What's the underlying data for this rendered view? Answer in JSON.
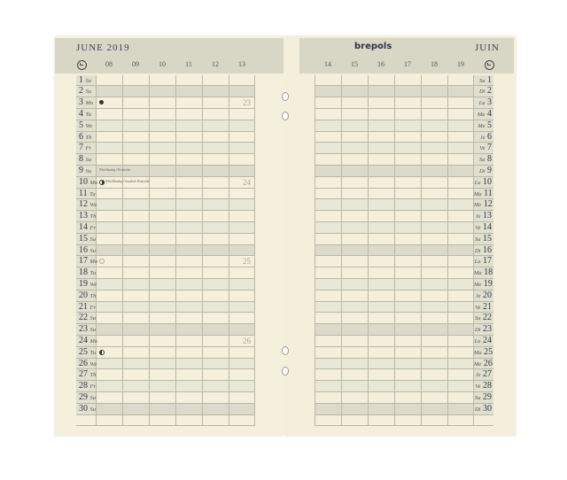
{
  "left_page": {
    "title": "JUNE 2019",
    "clock_icon": "clock-icon",
    "hours": [
      "08",
      "09",
      "10",
      "11",
      "12",
      "13"
    ]
  },
  "right_page": {
    "brand": "brepols",
    "title": "JUIN",
    "clock_icon": "clock-icon",
    "hours": [
      "14",
      "15",
      "16",
      "17",
      "18",
      "19"
    ]
  },
  "days": [
    {
      "n": "1",
      "en": "Sa",
      "fr": "Sa",
      "type": "sat"
    },
    {
      "n": "2",
      "en": "Su",
      "fr": "Di",
      "type": "sun"
    },
    {
      "n": "3",
      "en": "Mo",
      "fr": "Lu",
      "week": "23",
      "moon": "new"
    },
    {
      "n": "4",
      "en": "Tu",
      "fr": "Ma"
    },
    {
      "n": "5",
      "en": "We",
      "fr": "Me",
      "type": "wed"
    },
    {
      "n": "6",
      "en": "Th",
      "fr": "Je"
    },
    {
      "n": "7",
      "en": "Fr",
      "fr": "Ve",
      "type": "wed"
    },
    {
      "n": "8",
      "en": "Sa",
      "fr": "Sa"
    },
    {
      "n": "9",
      "en": "Su",
      "fr": "Di",
      "type": "sun",
      "note": "Whit Sunday / Pentecôte"
    },
    {
      "n": "10",
      "en": "Mo",
      "fr": "Lu",
      "week": "24",
      "moon": "first-quarter",
      "note": "Whit Monday / Lundi de Pentecôte"
    },
    {
      "n": "11",
      "en": "Tu",
      "fr": "Ma"
    },
    {
      "n": "12",
      "en": "We",
      "fr": "Me",
      "type": "wed"
    },
    {
      "n": "13",
      "en": "Th",
      "fr": "Je"
    },
    {
      "n": "14",
      "en": "Fr",
      "fr": "Ve",
      "type": "wed"
    },
    {
      "n": "15",
      "en": "Sa",
      "fr": "Sa"
    },
    {
      "n": "16",
      "en": "Su",
      "fr": "Di",
      "type": "sun"
    },
    {
      "n": "17",
      "en": "Mo",
      "fr": "Lu",
      "week": "25",
      "moon": "full"
    },
    {
      "n": "18",
      "en": "Tu",
      "fr": "Ma"
    },
    {
      "n": "19",
      "en": "We",
      "fr": "Me",
      "type": "wed"
    },
    {
      "n": "20",
      "en": "Th",
      "fr": "Je"
    },
    {
      "n": "21",
      "en": "Fr",
      "fr": "Ve",
      "type": "wed"
    },
    {
      "n": "22",
      "en": "Sa",
      "fr": "Sa"
    },
    {
      "n": "23",
      "en": "Su",
      "fr": "Di",
      "type": "sun"
    },
    {
      "n": "24",
      "en": "Mo",
      "fr": "Lu",
      "week": "26"
    },
    {
      "n": "25",
      "en": "Tu",
      "fr": "Ma",
      "moon": "last-quarter"
    },
    {
      "n": "26",
      "en": "We",
      "fr": "Me",
      "type": "wed"
    },
    {
      "n": "27",
      "en": "Th",
      "fr": "Je"
    },
    {
      "n": "28",
      "en": "Fr",
      "fr": "Ve",
      "type": "wed"
    },
    {
      "n": "29",
      "en": "Sa",
      "fr": "Sa"
    },
    {
      "n": "30",
      "en": "Su",
      "fr": "Di",
      "type": "sun"
    }
  ]
}
